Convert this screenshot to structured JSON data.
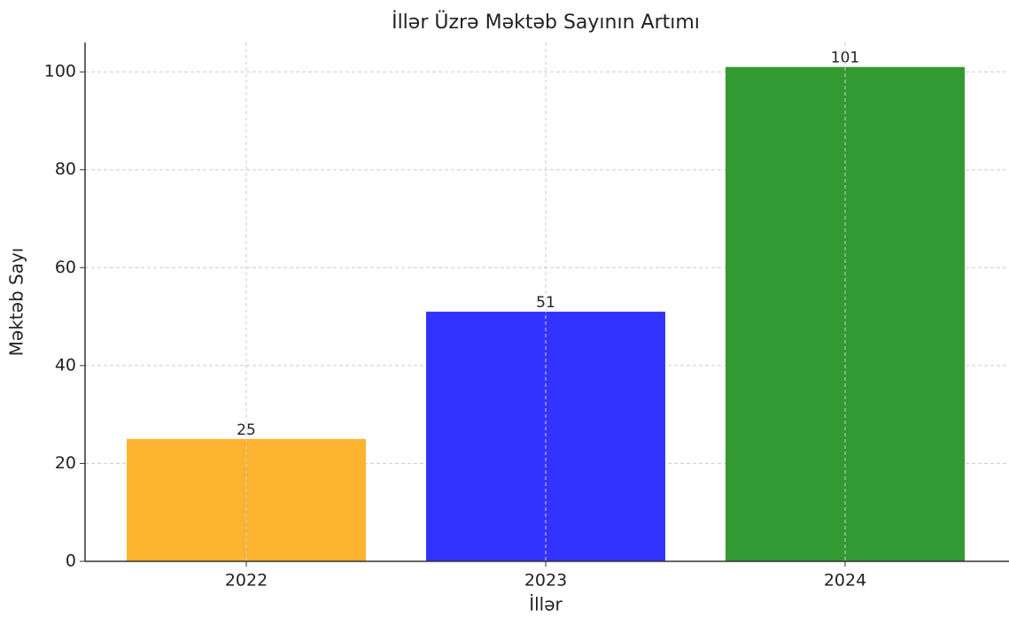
{
  "chart_data": {
    "type": "bar",
    "title": "İllər Üzrə Məktəb Sayının Artımı",
    "x_label": "İllər",
    "y_label": "Məktəb Sayı",
    "categories": [
      "2022",
      "2023",
      "2024"
    ],
    "values": [
      25,
      51,
      101
    ],
    "colors": [
      "#fdb32f",
      "#3333ff",
      "#339933"
    ],
    "ylim": [
      0,
      106
    ],
    "yticks": [
      0,
      20,
      40,
      60,
      80,
      100
    ],
    "grid": true
  }
}
